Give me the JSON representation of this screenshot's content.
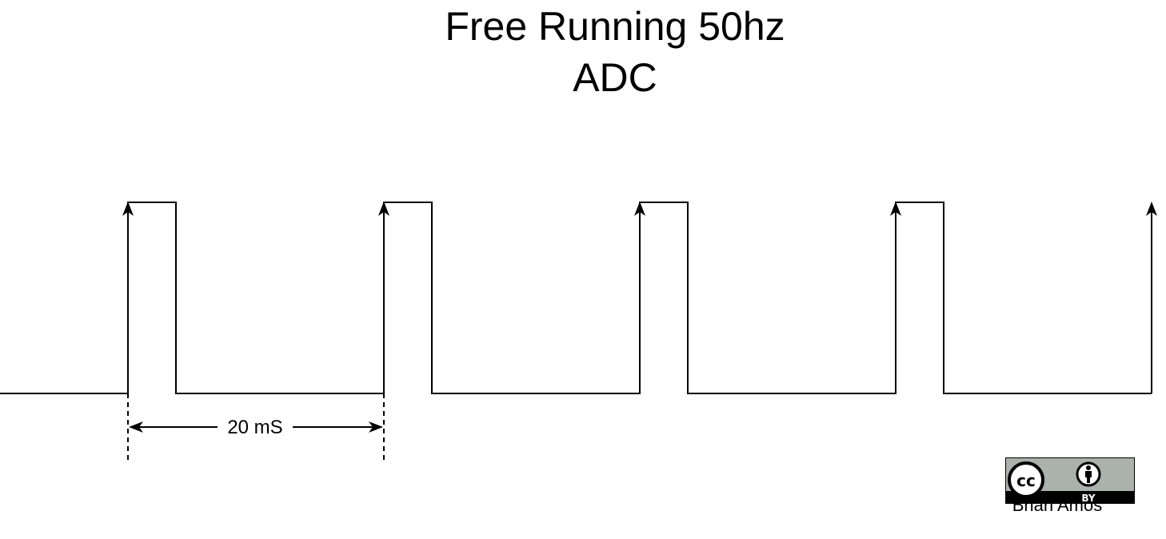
{
  "diagram": {
    "title_lines": [
      "Free Running 50hz",
      "ADC"
    ],
    "period_label": "20 mS",
    "pulse_count": 4,
    "colors": {
      "stroke": "#000000",
      "background": "#ffffff",
      "badge_gray": "#aab2ab"
    }
  },
  "license_badge": {
    "cc_text": "cc",
    "by_text": "BY",
    "icons": [
      "creative-commons-icon",
      "attribution-person-icon"
    ]
  },
  "author": {
    "name": "Brian Amos"
  }
}
